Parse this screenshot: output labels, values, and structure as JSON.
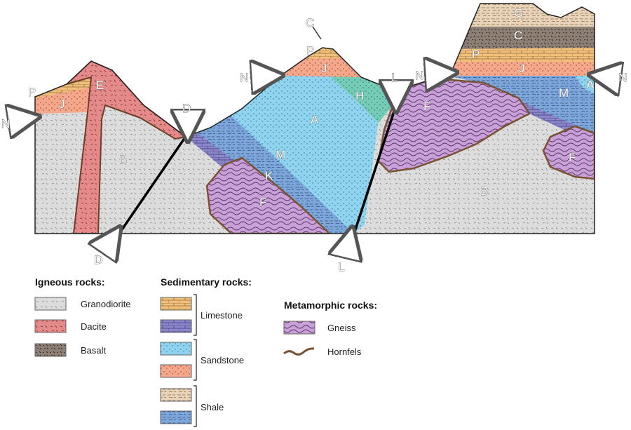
{
  "units": {
    "A": "A",
    "B": "B",
    "C": "C",
    "E": "E",
    "F": "F",
    "G": "G",
    "H": "H",
    "J": "J",
    "K": "K",
    "M": "M",
    "P": "P"
  },
  "markers": {
    "C": "C",
    "D": "D",
    "N": "N",
    "L": "L"
  },
  "legend": {
    "igneous": {
      "heading": "Igneous rocks:",
      "items": [
        {
          "label": "Granodiorite",
          "color": "#dcdcdc"
        },
        {
          "label": "Dacite",
          "color": "#e58a8a"
        },
        {
          "label": "Basalt",
          "color": "#8e7f75"
        }
      ]
    },
    "sedimentary": {
      "heading": "Sedimentary rocks:",
      "groups": [
        {
          "label": "Limestone",
          "colors": [
            "#f3c07b",
            "#8a86c9"
          ]
        },
        {
          "label": "Sandstone",
          "colors": [
            "#8fd3ef",
            "#f4a78a"
          ]
        },
        {
          "label": "Shale",
          "colors": [
            "#e8d2b8",
            "#7da7da"
          ]
        }
      ]
    },
    "metamorphic": {
      "heading": "Metamorphic rocks:",
      "items": [
        {
          "label": "Gneiss",
          "color": "#c9a0d8"
        },
        {
          "label": "Hornfels",
          "color": "#7a5232"
        }
      ]
    }
  }
}
